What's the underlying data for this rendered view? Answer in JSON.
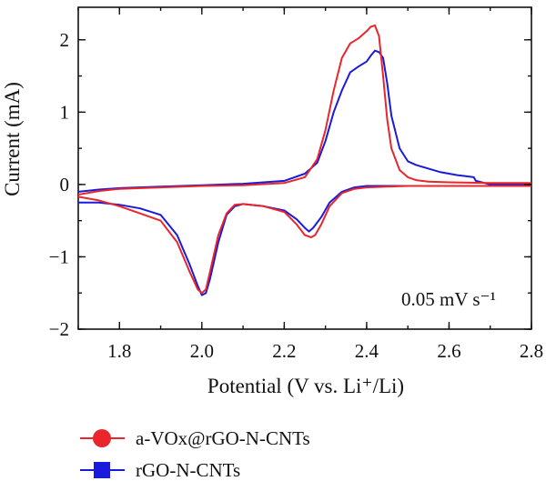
{
  "chart_data": {
    "type": "line",
    "title": "",
    "xlabel": "Potential (V vs. Li⁺/Li)",
    "ylabel": "Current (mA)",
    "xlim": [
      1.7,
      2.8
    ],
    "ylim": [
      -2,
      2.45
    ],
    "xticks": [
      1.8,
      2.0,
      2.2,
      2.4,
      2.6,
      2.8
    ],
    "xtick_labels": [
      "1.8",
      "2.0",
      "2.2",
      "2.4",
      "2.6",
      "2.8"
    ],
    "yticks": [
      -2,
      -1,
      0,
      1,
      2
    ],
    "ytick_labels": [
      "−2",
      "−1",
      "0",
      "1",
      "2"
    ],
    "annotation": "0.05 mV s⁻¹",
    "grid": false,
    "legend_position": "below",
    "series": [
      {
        "name": "a-VOx@rGO-N-CNTs",
        "color": "#e8262b",
        "marker": "circle",
        "x": [
          1.7,
          1.75,
          1.8,
          1.85,
          1.9,
          1.94,
          1.97,
          1.99,
          2.0,
          2.01,
          2.02,
          2.04,
          2.06,
          2.08,
          2.1,
          2.15,
          2.2,
          2.23,
          2.25,
          2.265,
          2.275,
          2.29,
          2.31,
          2.34,
          2.37,
          2.4,
          2.45,
          2.5,
          2.6,
          2.7,
          2.8,
          2.8,
          2.7,
          2.6,
          2.55,
          2.52,
          2.5,
          2.48,
          2.46,
          2.45,
          2.44,
          2.43,
          2.42,
          2.41,
          2.4,
          2.38,
          2.36,
          2.34,
          2.32,
          2.3,
          2.28,
          2.25,
          2.2,
          2.1,
          2.0,
          1.9,
          1.8,
          1.75,
          1.7
        ],
        "y": [
          -0.17,
          -0.22,
          -0.3,
          -0.4,
          -0.5,
          -0.8,
          -1.2,
          -1.45,
          -1.5,
          -1.45,
          -1.2,
          -0.7,
          -0.4,
          -0.28,
          -0.27,
          -0.3,
          -0.38,
          -0.55,
          -0.7,
          -0.73,
          -0.7,
          -0.55,
          -0.3,
          -0.12,
          -0.06,
          -0.04,
          -0.03,
          -0.02,
          -0.02,
          -0.02,
          -0.02,
          0.02,
          0.02,
          0.03,
          0.04,
          0.06,
          0.1,
          0.2,
          0.5,
          0.9,
          1.5,
          2.05,
          2.2,
          2.18,
          2.12,
          2.02,
          1.95,
          1.75,
          1.3,
          0.75,
          0.35,
          0.1,
          0.02,
          -0.01,
          -0.02,
          -0.04,
          -0.06,
          -0.09,
          -0.14
        ]
      },
      {
        "name": "rGO-N-CNTs",
        "color": "#1a1adc",
        "marker": "square",
        "x": [
          1.7,
          1.75,
          1.8,
          1.85,
          1.9,
          1.94,
          1.97,
          1.99,
          2.0,
          2.01,
          2.02,
          2.04,
          2.06,
          2.08,
          2.1,
          2.15,
          2.2,
          2.23,
          2.25,
          2.26,
          2.27,
          2.29,
          2.31,
          2.34,
          2.37,
          2.4,
          2.45,
          2.5,
          2.6,
          2.7,
          2.8,
          2.8,
          2.7,
          2.665,
          2.66,
          2.62,
          2.58,
          2.55,
          2.52,
          2.5,
          2.48,
          2.46,
          2.45,
          2.44,
          2.43,
          2.42,
          2.41,
          2.4,
          2.38,
          2.36,
          2.34,
          2.32,
          2.3,
          2.28,
          2.25,
          2.2,
          2.1,
          2.0,
          1.9,
          1.8,
          1.75,
          1.7
        ],
        "y": [
          -0.25,
          -0.25,
          -0.28,
          -0.33,
          -0.42,
          -0.7,
          -1.1,
          -1.4,
          -1.53,
          -1.5,
          -1.3,
          -0.8,
          -0.42,
          -0.3,
          -0.27,
          -0.3,
          -0.36,
          -0.48,
          -0.6,
          -0.65,
          -0.6,
          -0.45,
          -0.25,
          -0.1,
          -0.04,
          -0.02,
          -0.02,
          -0.02,
          -0.02,
          -0.02,
          -0.01,
          0.0,
          0.0,
          0.05,
          0.1,
          0.13,
          0.17,
          0.22,
          0.27,
          0.32,
          0.5,
          0.95,
          1.4,
          1.75,
          1.83,
          1.85,
          1.78,
          1.7,
          1.63,
          1.55,
          1.3,
          1.0,
          0.6,
          0.3,
          0.15,
          0.05,
          0.01,
          -0.01,
          -0.03,
          -0.05,
          -0.07,
          -0.1
        ]
      }
    ]
  }
}
